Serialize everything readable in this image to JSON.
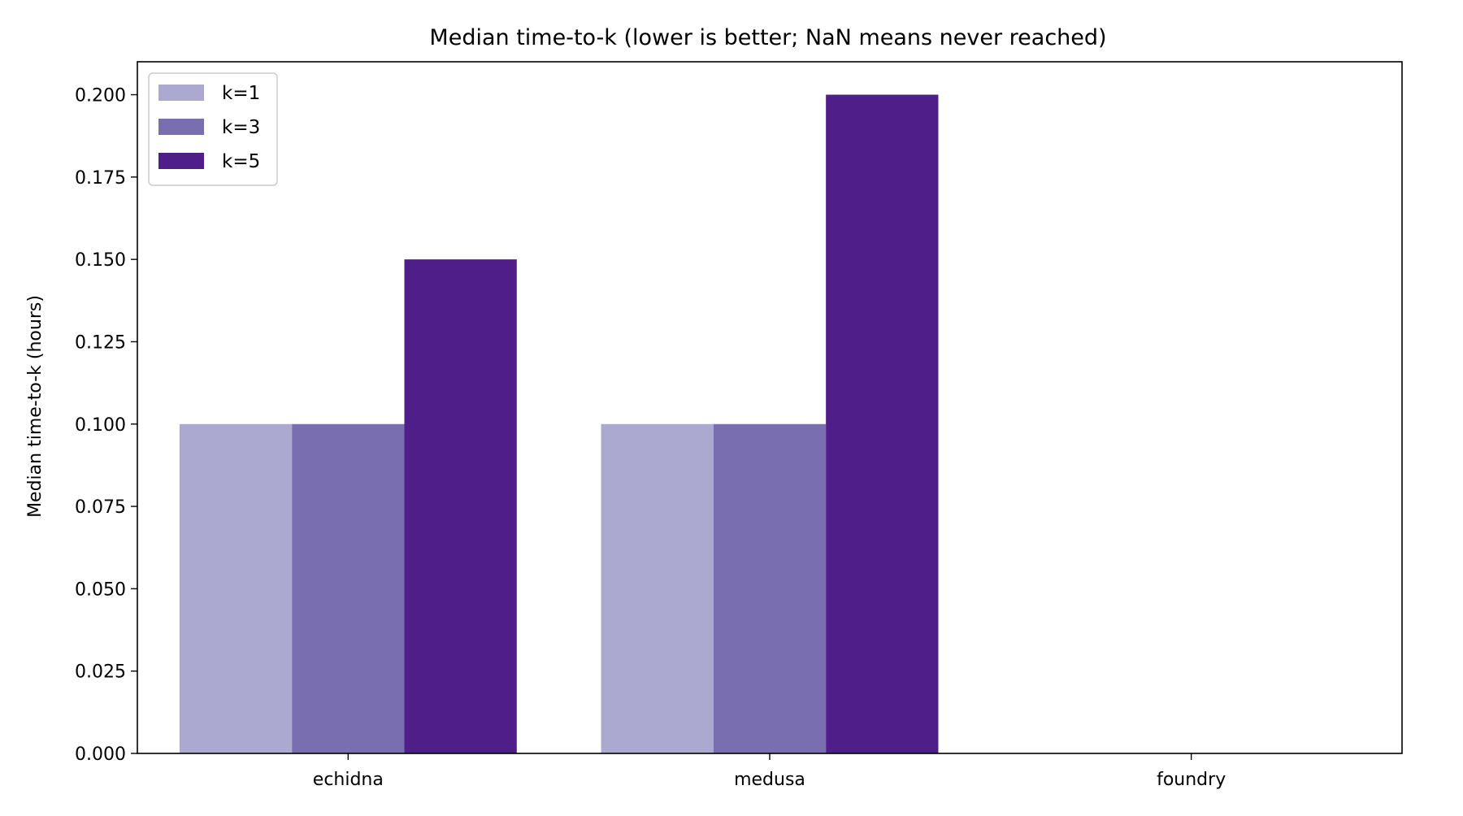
{
  "chart_data": {
    "type": "bar",
    "title": "Median time-to-k (lower is better; NaN means never reached)",
    "xlabel": "",
    "ylabel": "Median time-to-k (hours)",
    "categories": [
      "echidna",
      "medusa",
      "foundry"
    ],
    "series": [
      {
        "name": "k=1",
        "color": "#aba9d0",
        "values": [
          0.1,
          0.1,
          null
        ]
      },
      {
        "name": "k=3",
        "color": "#786eb0",
        "values": [
          0.1,
          0.1,
          null
        ]
      },
      {
        "name": "k=5",
        "color": "#4f1e89",
        "values": [
          0.15,
          0.2,
          null
        ]
      }
    ],
    "ylim": [
      0,
      0.21
    ],
    "yticks": [
      "0.000",
      "0.025",
      "0.050",
      "0.075",
      "0.100",
      "0.125",
      "0.150",
      "0.175",
      "0.200"
    ],
    "ytick_values": [
      0,
      0.025,
      0.05,
      0.075,
      0.1,
      0.125,
      0.15,
      0.175,
      0.2
    ],
    "grid": false,
    "legend_position": "top-left"
  }
}
